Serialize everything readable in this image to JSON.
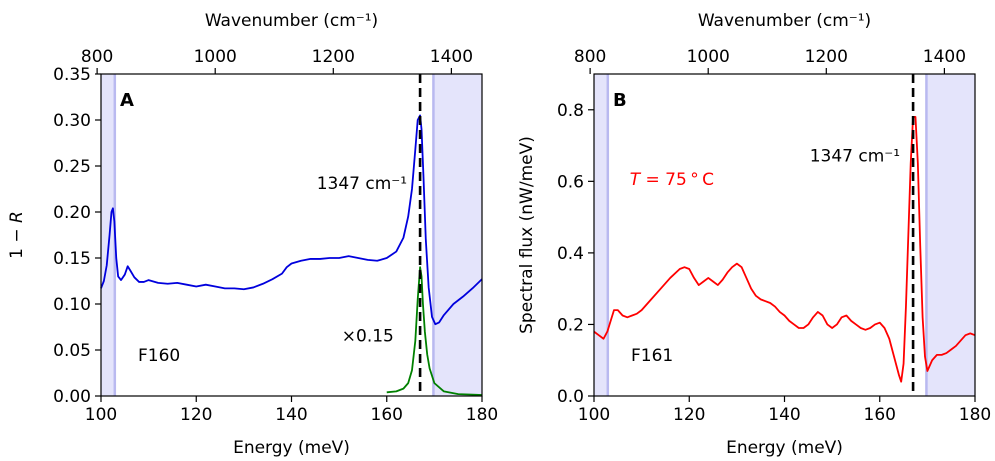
{
  "chart_data": [
    {
      "type": "line",
      "panel_label": "A",
      "xlabel": "Energy (meV)",
      "ylabel": "1 − R",
      "ylabel_parts": {
        "num": "1 − ",
        "var": "R"
      },
      "x2label": "Wavenumber (cm⁻¹)",
      "xlim": [
        100,
        180
      ],
      "ylim": [
        0,
        0.35
      ],
      "xticks": [
        100,
        120,
        140,
        160,
        180
      ],
      "yticks": [
        0.0,
        0.05,
        0.1,
        0.15,
        0.2,
        0.25,
        0.3,
        0.35
      ],
      "ytick_labels": [
        "0.00",
        "0.05",
        "0.10",
        "0.15",
        "0.20",
        "0.25",
        "0.30",
        "0.35"
      ],
      "x2ticks": [
        800,
        1000,
        1200,
        1400
      ],
      "secondary_axis_conversion_meV_per_cm": 0.12398,
      "grid": false,
      "shaded_regions": [
        {
          "from": 100,
          "to": 102.9
        },
        {
          "from": 169.8,
          "to": 180
        }
      ],
      "shade_color": "#e4e4fb",
      "shade_edge_color": "#b9b9f0",
      "vline": {
        "x": 167.0,
        "style": "dashed",
        "label": "1347 cm⁻¹"
      },
      "sample_label": "F160",
      "series": [
        {
          "color": "#0000dd",
          "x": [
            100,
            100.6,
            101.2,
            101.8,
            102.2,
            102.5,
            102.8,
            103.2,
            103.6,
            104.2,
            105,
            105.6,
            106.2,
            107,
            108,
            109,
            110,
            112,
            114,
            116,
            118,
            120,
            122,
            124,
            126,
            128,
            130,
            132,
            134,
            136,
            138,
            139,
            140,
            142,
            144,
            146,
            148,
            150,
            152,
            154,
            156,
            158,
            160,
            162,
            163.5,
            164.5,
            165.3,
            166,
            166.5,
            167,
            167.3,
            167.7,
            168.2,
            168.8,
            169.5,
            170.2,
            171,
            172,
            174,
            176,
            178,
            180
          ],
          "y": [
            0.117,
            0.125,
            0.142,
            0.175,
            0.2,
            0.204,
            0.19,
            0.15,
            0.13,
            0.126,
            0.132,
            0.141,
            0.136,
            0.129,
            0.124,
            0.124,
            0.126,
            0.123,
            0.122,
            0.123,
            0.121,
            0.119,
            0.121,
            0.119,
            0.117,
            0.117,
            0.116,
            0.118,
            0.122,
            0.127,
            0.133,
            0.14,
            0.144,
            0.147,
            0.149,
            0.149,
            0.15,
            0.15,
            0.152,
            0.15,
            0.148,
            0.147,
            0.15,
            0.157,
            0.172,
            0.195,
            0.225,
            0.268,
            0.3,
            0.305,
            0.29,
            0.24,
            0.17,
            0.118,
            0.086,
            0.078,
            0.08,
            0.088,
            0.1,
            0.108,
            0.117,
            0.127
          ]
        },
        {
          "name": "×0.15",
          "color": "#008000",
          "x": [
            160,
            162,
            163.5,
            164.5,
            165.3,
            166,
            166.5,
            167,
            167.3,
            167.6,
            168,
            168.5,
            169,
            170,
            172,
            175,
            178,
            180
          ],
          "y": [
            0.004,
            0.005,
            0.008,
            0.014,
            0.028,
            0.06,
            0.105,
            0.14,
            0.13,
            0.1,
            0.07,
            0.045,
            0.03,
            0.014,
            0.005,
            0.002,
            0.0015,
            0.001
          ]
        }
      ],
      "colors": {
        "blue": "#0000dd",
        "green": "#008000",
        "vline": "#000000"
      }
    },
    {
      "type": "line",
      "panel_label": "B",
      "xlabel": "Energy (meV)",
      "ylabel": "Spectral flux (nW/meV)",
      "x2label": "Wavenumber (cm⁻¹)",
      "xlim": [
        100,
        180
      ],
      "ylim": [
        0,
        0.9
      ],
      "xticks": [
        100,
        120,
        140,
        160,
        180
      ],
      "yticks": [
        0.0,
        0.2,
        0.4,
        0.6,
        0.8
      ],
      "ytick_labels": [
        "0.0",
        "0.2",
        "0.4",
        "0.6",
        "0.8"
      ],
      "x2ticks": [
        800,
        1000,
        1200,
        1400
      ],
      "secondary_axis_conversion_meV_per_cm": 0.12398,
      "grid": false,
      "shaded_regions": [
        {
          "from": 100,
          "to": 102.9
        },
        {
          "from": 169.8,
          "to": 180
        }
      ],
      "shade_color": "#e4e4fb",
      "shade_edge_color": "#b9b9f0",
      "vline": {
        "x": 167.0,
        "style": "dashed",
        "label": "1347 cm⁻¹"
      },
      "sample_label": "F161",
      "temperature_label": {
        "var": "T",
        "rest": " = 75 ° C",
        "color": "#ff0000"
      },
      "series": [
        {
          "color": "#ff0000",
          "x": [
            100,
            101,
            102,
            102.8,
            103.5,
            104.2,
            105,
            106,
            107,
            108,
            109,
            110,
            112,
            114,
            116,
            118,
            119,
            120,
            121,
            122,
            123,
            124,
            125,
            126,
            127,
            128,
            129,
            130,
            131,
            132,
            133,
            134,
            135,
            136,
            137,
            138,
            139,
            140,
            141,
            142,
            143,
            144,
            145,
            146,
            147,
            148,
            149,
            150,
            151,
            152,
            153,
            154,
            155,
            156,
            157,
            158,
            159,
            160,
            161,
            162,
            163,
            164,
            164.5,
            165,
            165.5,
            166,
            166.5,
            167,
            167.5,
            168,
            168.5,
            169,
            169.5,
            170,
            171,
            172,
            173,
            174,
            175,
            176,
            177,
            178,
            179,
            180
          ],
          "y": [
            0.18,
            0.17,
            0.16,
            0.18,
            0.21,
            0.24,
            0.24,
            0.225,
            0.22,
            0.225,
            0.23,
            0.24,
            0.27,
            0.3,
            0.33,
            0.355,
            0.36,
            0.355,
            0.33,
            0.31,
            0.32,
            0.33,
            0.32,
            0.31,
            0.325,
            0.345,
            0.36,
            0.37,
            0.36,
            0.33,
            0.3,
            0.28,
            0.27,
            0.265,
            0.26,
            0.25,
            0.235,
            0.225,
            0.21,
            0.2,
            0.19,
            0.19,
            0.2,
            0.22,
            0.235,
            0.225,
            0.2,
            0.19,
            0.2,
            0.22,
            0.225,
            0.21,
            0.2,
            0.19,
            0.185,
            0.19,
            0.2,
            0.205,
            0.19,
            0.16,
            0.11,
            0.06,
            0.04,
            0.09,
            0.25,
            0.45,
            0.65,
            0.78,
            0.78,
            0.65,
            0.42,
            0.22,
            0.11,
            0.07,
            0.1,
            0.115,
            0.115,
            0.12,
            0.13,
            0.14,
            0.155,
            0.17,
            0.175,
            0.17
          ]
        }
      ],
      "colors": {
        "red": "#ff0000",
        "vline": "#000000"
      }
    }
  ]
}
